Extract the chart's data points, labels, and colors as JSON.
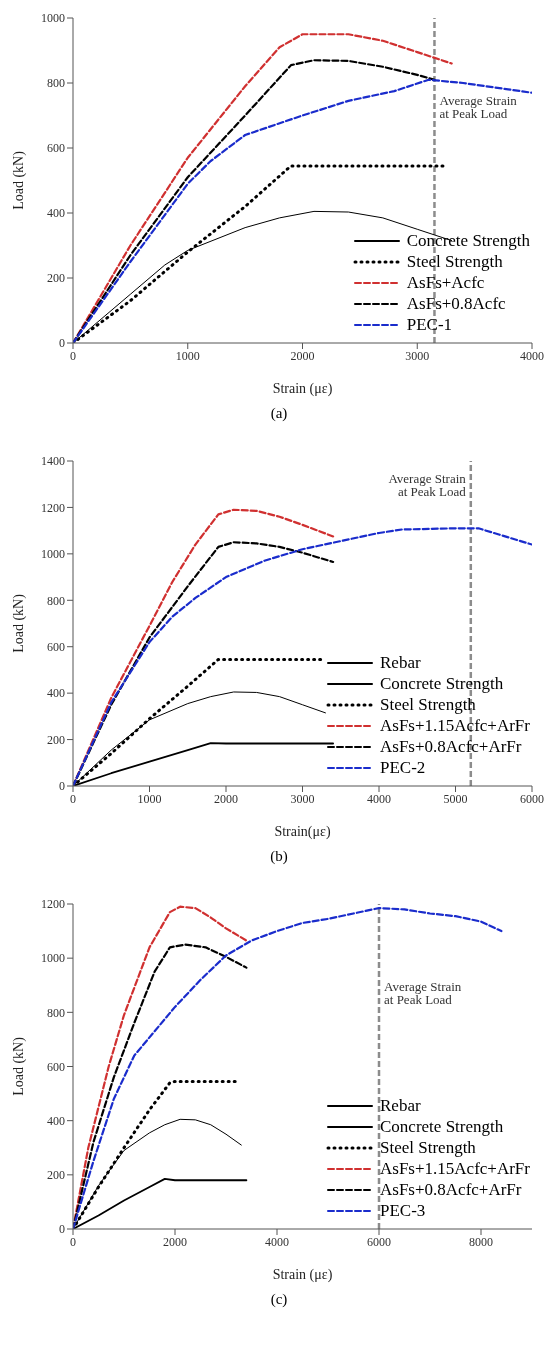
{
  "chart_data": [
    {
      "type": "line",
      "title": "(a)",
      "xlabel": "Strain (με)",
      "ylabel": "Load (kN)",
      "xlim": [
        0,
        4000
      ],
      "xticks": [
        0,
        1000,
        2000,
        3000,
        4000
      ],
      "ylim": [
        0,
        1000
      ],
      "yticks": [
        0,
        200,
        400,
        600,
        800,
        1000
      ],
      "grid": false,
      "legend": "bottom right",
      "marker": "none",
      "ref_lines": [
        {
          "axis": "x",
          "value": 3150,
          "label": "Average Strain at Peak Load",
          "color": "#8c8c8c",
          "line_style": "dashed"
        }
      ],
      "series": [
        {
          "name": "Concrete Strength",
          "color": "#000000",
          "line_style": "solid",
          "x": [
            0,
            500,
            800,
            1000,
            1500,
            1800,
            2100,
            2400,
            2700,
            3000,
            3300
          ],
          "values": [
            0,
            150,
            240,
            285,
            355,
            385,
            405,
            403,
            385,
            350,
            315
          ]
        },
        {
          "name": "Steel Strength",
          "color": "#000000",
          "line_style": "dotted",
          "x": [
            0,
            500,
            1000,
            1500,
            1900,
            2000,
            3250
          ],
          "values": [
            0,
            130,
            280,
            420,
            545,
            545,
            545
          ]
        },
        {
          "name": "AsFs+Acfc",
          "color": "#d03030",
          "line_style": "dashed",
          "x": [
            0,
            500,
            1000,
            1500,
            1800,
            2000,
            2400,
            2700,
            3000,
            3300
          ],
          "values": [
            0,
            300,
            570,
            790,
            910,
            950,
            950,
            930,
            895,
            860
          ]
        },
        {
          "name": "AsFs+0.8Acfc",
          "color": "#000000",
          "line_style": "dashed",
          "x": [
            0,
            500,
            1000,
            1500,
            1900,
            2100,
            2400,
            2700,
            3000,
            3150
          ],
          "values": [
            0,
            270,
            510,
            700,
            855,
            870,
            868,
            850,
            825,
            810
          ]
        },
        {
          "name": "PEC-1",
          "color": "#1a2ccc",
          "line_style": "dashed",
          "x": [
            0,
            500,
            1000,
            1200,
            1500,
            2000,
            2400,
            2800,
            3100,
            3400,
            3700,
            4000
          ],
          "values": [
            0,
            250,
            490,
            560,
            640,
            700,
            745,
            775,
            810,
            800,
            785,
            770
          ]
        }
      ]
    },
    {
      "type": "line",
      "title": "(b)",
      "xlabel": "Strain(με)",
      "ylabel": "Load (kN)",
      "xlim": [
        0,
        6000
      ],
      "xticks": [
        0,
        1000,
        2000,
        3000,
        4000,
        5000,
        6000
      ],
      "ylim": [
        0,
        1400
      ],
      "yticks": [
        0,
        200,
        400,
        600,
        800,
        1000,
        1200,
        1400
      ],
      "grid": false,
      "legend": "bottom right",
      "marker": "none",
      "ref_lines": [
        {
          "axis": "x",
          "value": 5200,
          "label": "Average Strain at Peak Load",
          "color": "#8c8c8c",
          "line_style": "dashed"
        }
      ],
      "series": [
        {
          "name": "Rebar",
          "color": "#000000",
          "line_style": "solid",
          "x": [
            0,
            500,
            1000,
            1500,
            1800,
            2000,
            3400
          ],
          "values": [
            0,
            55,
            105,
            155,
            185,
            183,
            183
          ]
        },
        {
          "name": "Concrete Strength",
          "color": "#000000",
          "line_style": "solid",
          "x": [
            0,
            500,
            1000,
            1500,
            1800,
            2100,
            2400,
            2700,
            3000,
            3300
          ],
          "values": [
            0,
            155,
            285,
            355,
            385,
            405,
            403,
            385,
            350,
            315
          ]
        },
        {
          "name": "Steel Strength",
          "color": "#000000",
          "line_style": "dotted",
          "x": [
            0,
            500,
            1000,
            1500,
            1900,
            2000,
            3250
          ],
          "values": [
            0,
            140,
            290,
            430,
            545,
            545,
            545
          ]
        },
        {
          "name": "AsFs+1.15Acfc+ArFr",
          "color": "#d03030",
          "line_style": "dashed",
          "x": [
            0,
            500,
            1000,
            1300,
            1600,
            1900,
            2100,
            2400,
            2700,
            3000,
            3400
          ],
          "values": [
            0,
            380,
            690,
            880,
            1040,
            1170,
            1190,
            1185,
            1160,
            1125,
            1075
          ]
        },
        {
          "name": "AsFs+0.8Acfc+ArFr",
          "color": "#000000",
          "line_style": "dashed",
          "x": [
            0,
            500,
            1000,
            1500,
            1900,
            2100,
            2400,
            2700,
            3000,
            3400
          ],
          "values": [
            0,
            350,
            640,
            860,
            1030,
            1050,
            1045,
            1030,
            1005,
            965
          ]
        },
        {
          "name": "PEC-2",
          "color": "#1a2ccc",
          "line_style": "dashed",
          "x": [
            0,
            500,
            1000,
            1300,
            1600,
            2000,
            2500,
            3000,
            3500,
            4000,
            4300,
            5000,
            5300,
            5700,
            6000
          ],
          "values": [
            0,
            360,
            620,
            730,
            810,
            900,
            970,
            1020,
            1055,
            1090,
            1105,
            1110,
            1110,
            1070,
            1040
          ]
        }
      ]
    },
    {
      "type": "line",
      "title": "(c)",
      "xlabel": "Strain (με)",
      "ylabel": "Load (kN)",
      "xlim": [
        0,
        9000
      ],
      "xticks": [
        0,
        2000,
        4000,
        6000,
        8000
      ],
      "ylim": [
        0,
        1200
      ],
      "yticks": [
        0,
        200,
        400,
        600,
        800,
        1000,
        1200
      ],
      "grid": false,
      "legend": "bottom right",
      "marker": "none",
      "ref_lines": [
        {
          "axis": "x",
          "value": 6000,
          "label": "Average Strain at Peak Load",
          "color": "#8c8c8c",
          "line_style": "dashed"
        }
      ],
      "series": [
        {
          "name": "Rebar",
          "color": "#000000",
          "line_style": "solid",
          "x": [
            0,
            500,
            1000,
            1500,
            1800,
            2000,
            3400
          ],
          "values": [
            0,
            50,
            105,
            155,
            185,
            180,
            180
          ]
        },
        {
          "name": "Concrete Strength",
          "color": "#000000",
          "line_style": "solid",
          "x": [
            0,
            500,
            1000,
            1500,
            1800,
            2100,
            2400,
            2700,
            3000,
            3300
          ],
          "values": [
            0,
            160,
            290,
            355,
            385,
            405,
            403,
            385,
            350,
            310
          ]
        },
        {
          "name": "Steel Strength",
          "color": "#000000",
          "line_style": "dotted",
          "x": [
            0,
            500,
            1000,
            1500,
            1900,
            2000,
            3250
          ],
          "values": [
            0,
            155,
            300,
            440,
            540,
            545,
            545
          ]
        },
        {
          "name": "AsFs+1.15Acfc+ArFr",
          "color": "#d03030",
          "line_style": "dashed",
          "x": [
            0,
            300,
            700,
            1000,
            1500,
            1900,
            2100,
            2400,
            2700,
            3000,
            3400
          ],
          "values": [
            0,
            300,
            600,
            790,
            1040,
            1170,
            1190,
            1185,
            1150,
            1110,
            1065
          ]
        },
        {
          "name": "AsFs+0.8Acfc+ArFr",
          "color": "#000000",
          "line_style": "dashed",
          "x": [
            0,
            400,
            800,
            1200,
            1600,
            1900,
            2200,
            2600,
            3000,
            3400
          ],
          "values": [
            0,
            320,
            560,
            760,
            950,
            1040,
            1050,
            1040,
            1005,
            965
          ]
        },
        {
          "name": "PEC-3",
          "color": "#1a2ccc",
          "line_style": "dashed",
          "x": [
            0,
            400,
            800,
            1200,
            1600,
            2000,
            2500,
            3000,
            3500,
            4000,
            4500,
            5000,
            5500,
            6000,
            6500,
            7000,
            7500,
            8000,
            8400
          ],
          "values": [
            0,
            250,
            480,
            640,
            730,
            820,
            920,
            1010,
            1065,
            1100,
            1130,
            1145,
            1165,
            1185,
            1180,
            1165,
            1155,
            1135,
            1100
          ]
        }
      ]
    }
  ]
}
